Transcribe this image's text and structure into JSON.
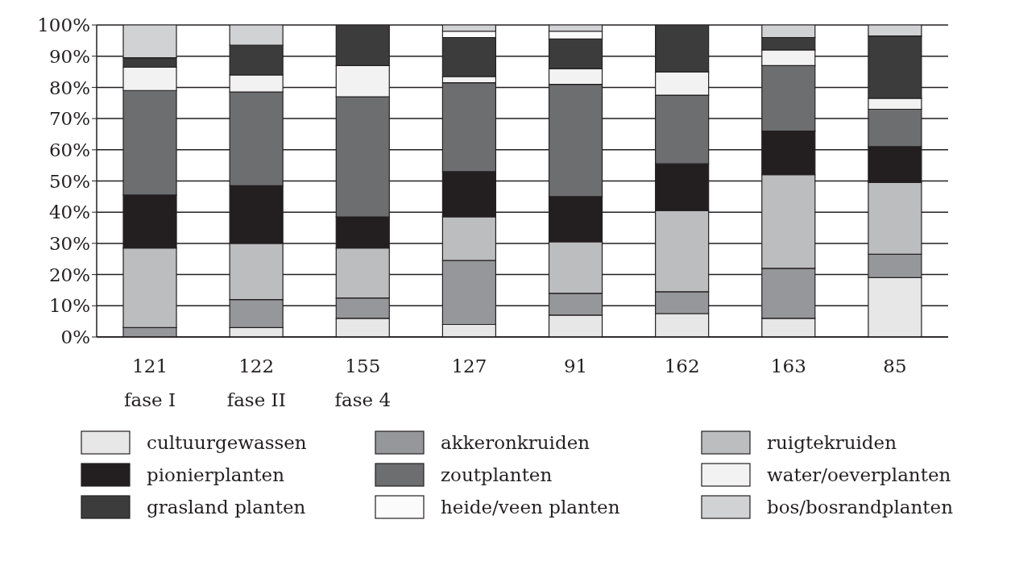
{
  "chart_data": {
    "type": "bar",
    "stacked": true,
    "categories": [
      "121\nfase I",
      "122\nfase II",
      "155\nfase 4",
      "127",
      "91",
      "162",
      "163",
      "85"
    ],
    "ylim": [
      0,
      100
    ],
    "yticks": [
      {
        "value": 0,
        "label": "0%"
      },
      {
        "value": 10,
        "label": "10%"
      },
      {
        "value": 20,
        "label": "20%"
      },
      {
        "value": 30,
        "label": "30%"
      },
      {
        "value": 40,
        "label": "40%"
      },
      {
        "value": 50,
        "label": "50%"
      },
      {
        "value": 60,
        "label": "60%"
      },
      {
        "value": 70,
        "label": "70%"
      },
      {
        "value": 80,
        "label": "80%"
      },
      {
        "value": 90,
        "label": "90%"
      },
      {
        "value": 100,
        "label": "100%"
      }
    ],
    "grid": "y",
    "legend": "bottom",
    "series": [
      {
        "name": "cultuurgewassen",
        "color": "#e6e7e6",
        "values": [
          0,
          3,
          6,
          4,
          7,
          7.5,
          6,
          19
        ]
      },
      {
        "name": "akkeronkruiden",
        "color": "#96979a",
        "values": [
          3,
          9,
          6.5,
          20.5,
          7,
          7,
          16,
          7.5
        ]
      },
      {
        "name": "ruigtekruiden",
        "color": "#bcbdbf",
        "values": [
          25.5,
          18,
          16,
          14,
          16.5,
          26,
          30,
          23
        ]
      },
      {
        "name": "pionierplanten",
        "color": "#231f20",
        "values": [
          17,
          18.5,
          10,
          14.5,
          14.5,
          15,
          14,
          11.5
        ]
      },
      {
        "name": "zoutplanten",
        "color": "#6d6e70",
        "values": [
          33.5,
          30,
          38.5,
          28.5,
          36,
          22,
          21,
          12
        ]
      },
      {
        "name": "water/oeverplanten",
        "color": "#f2f2f2",
        "values": [
          7.5,
          5.5,
          10,
          2,
          5,
          7.5,
          5,
          3.5
        ]
      },
      {
        "name": "grasland planten",
        "color": "#3c3c3c",
        "values": [
          3,
          9.5,
          13,
          12.5,
          9.5,
          15,
          4,
          20
        ]
      },
      {
        "name": "heide/veen planten",
        "color": "#fbfbfb",
        "values": [
          0,
          0,
          0,
          2,
          2.5,
          0,
          0,
          0
        ]
      },
      {
        "name": "bos/bosrandplanten",
        "color": "#d1d2d4",
        "values": [
          10.5,
          6.5,
          0,
          2,
          2,
          0,
          4,
          3.5
        ]
      }
    ]
  }
}
